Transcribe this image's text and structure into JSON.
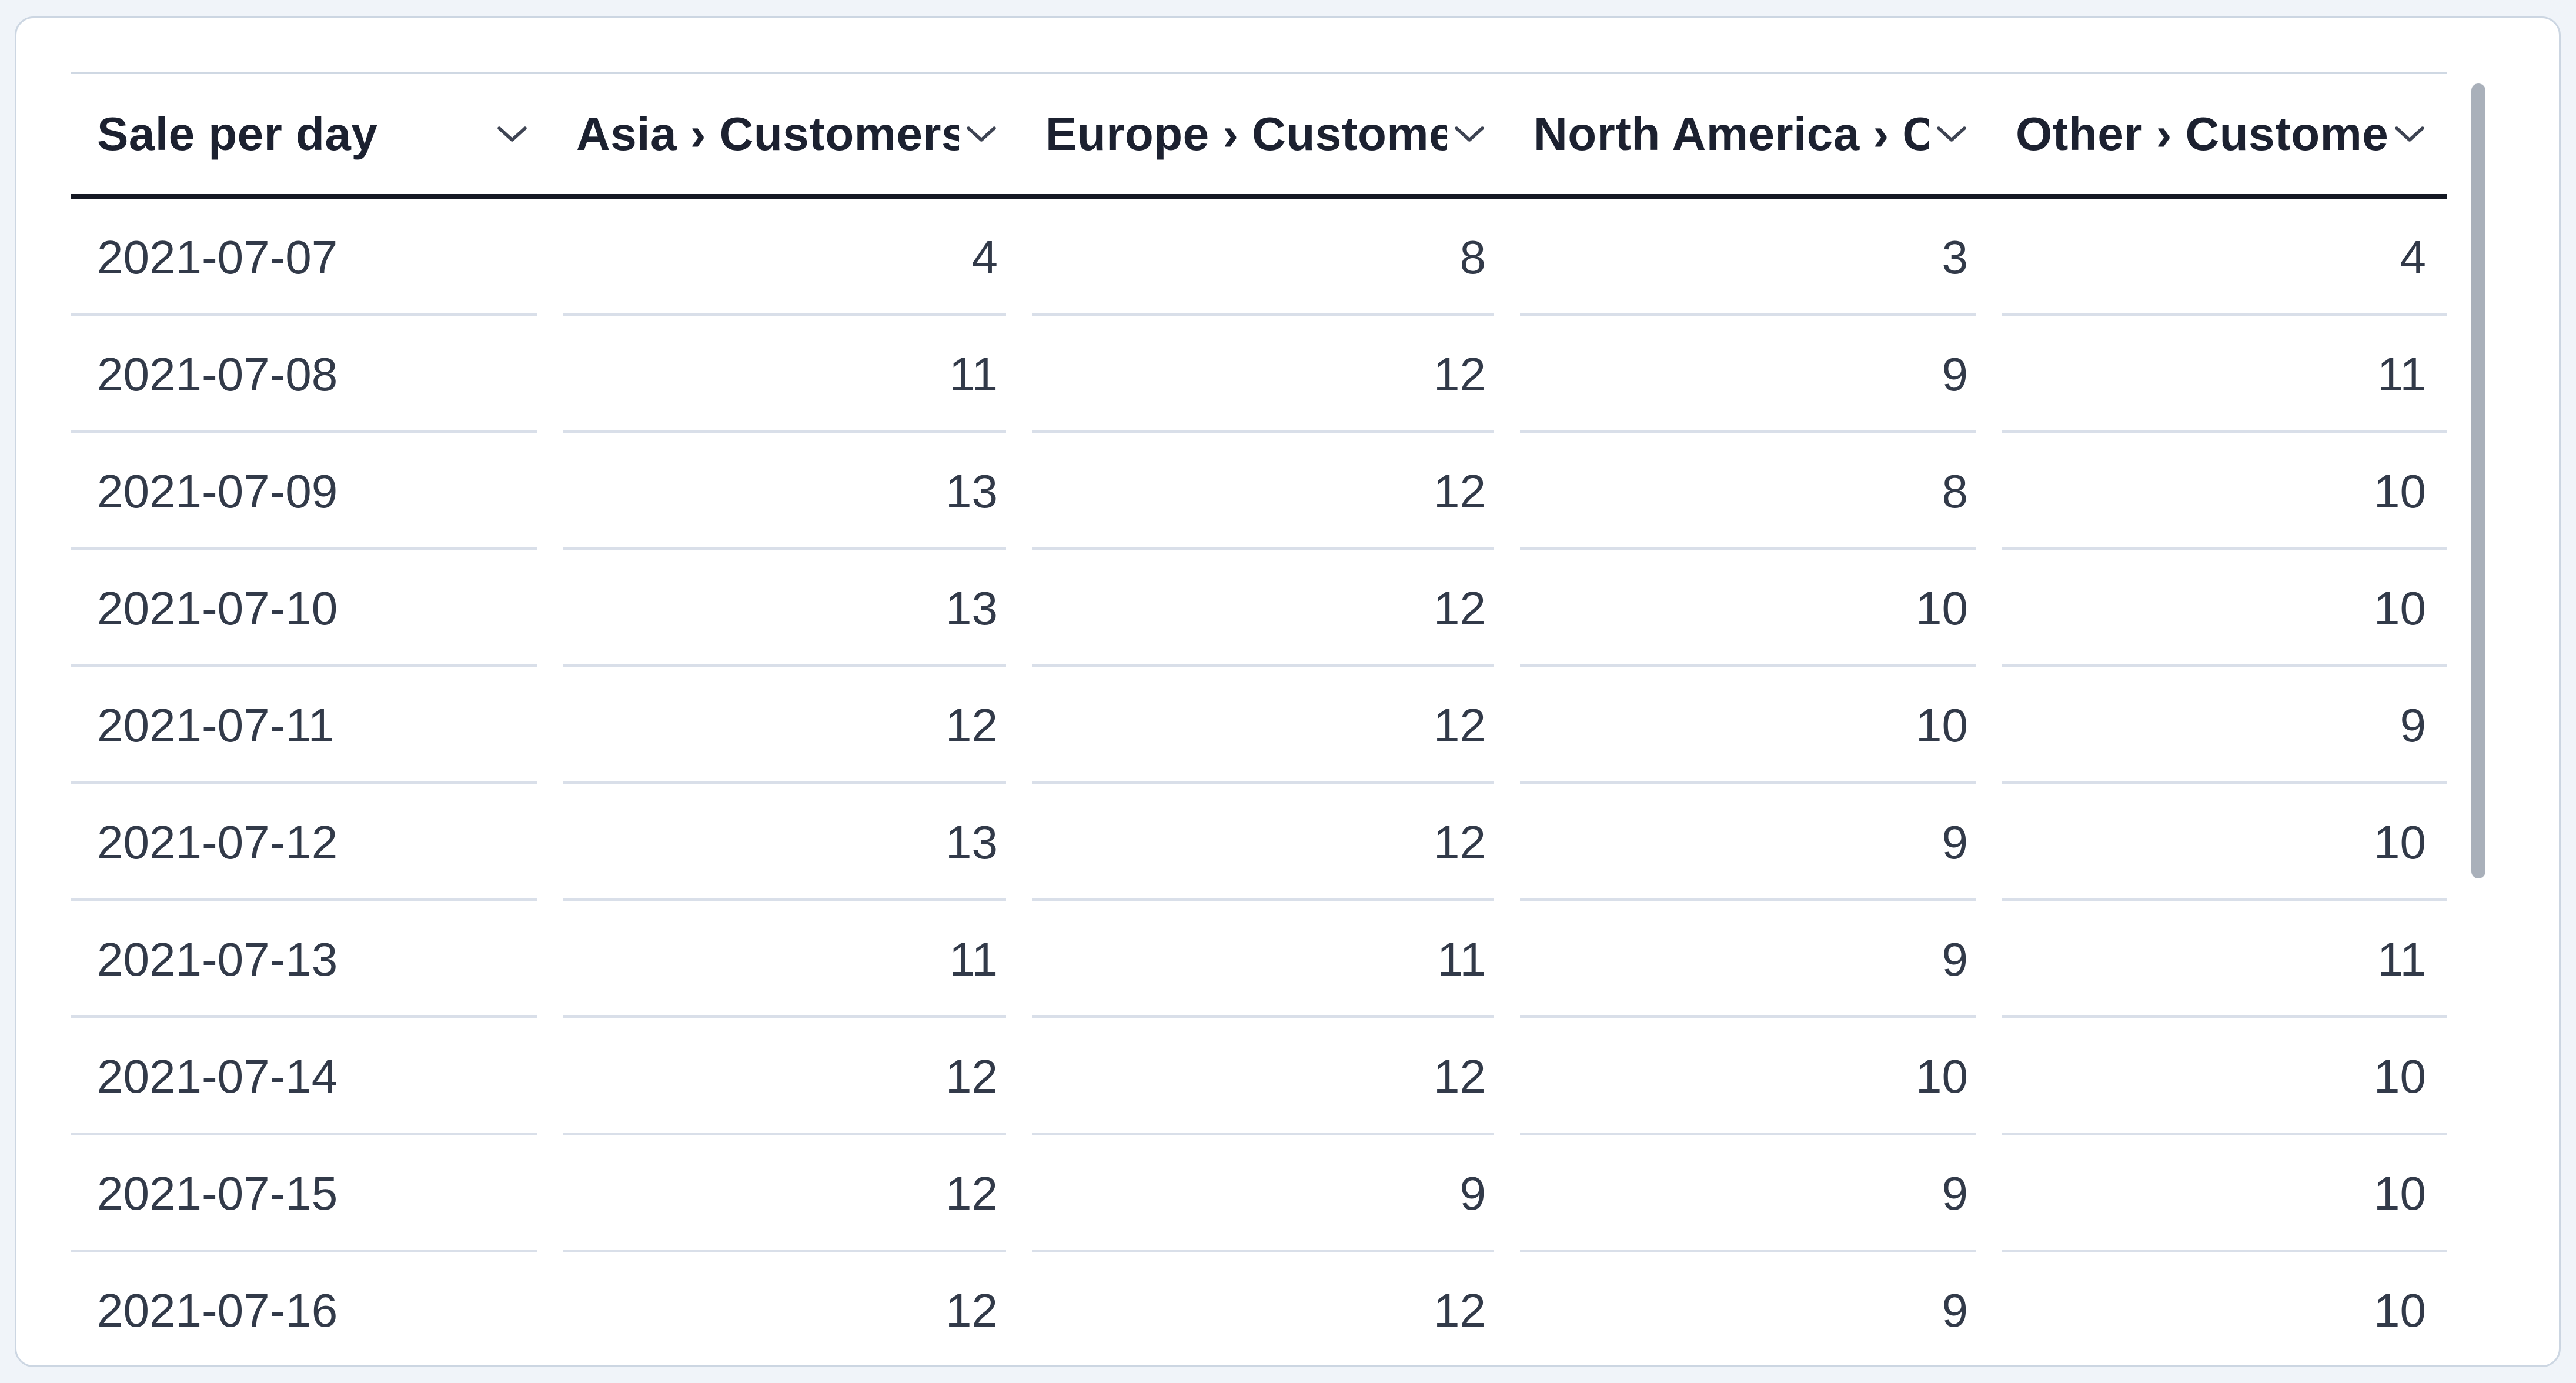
{
  "table": {
    "columns": [
      {
        "id": "sale-per-day",
        "label": "Sale per day",
        "align": "left"
      },
      {
        "id": "asia",
        "label": "Asia › Customers",
        "align": "right"
      },
      {
        "id": "europe",
        "label": "Europe › Customers",
        "align": "right"
      },
      {
        "id": "north-america",
        "label": "North America › Customers",
        "align": "right"
      },
      {
        "id": "other",
        "label": "Other › Customers",
        "align": "right"
      }
    ],
    "rows": [
      [
        "2021-07-07",
        4,
        8,
        3,
        4
      ],
      [
        "2021-07-08",
        11,
        12,
        9,
        11
      ],
      [
        "2021-07-09",
        13,
        12,
        8,
        10
      ],
      [
        "2021-07-10",
        13,
        12,
        10,
        10
      ],
      [
        "2021-07-11",
        12,
        12,
        10,
        9
      ],
      [
        "2021-07-12",
        13,
        12,
        9,
        10
      ],
      [
        "2021-07-13",
        11,
        11,
        9,
        11
      ],
      [
        "2021-07-14",
        12,
        12,
        10,
        10
      ],
      [
        "2021-07-15",
        12,
        9,
        9,
        10
      ],
      [
        "2021-07-16",
        12,
        12,
        9,
        10
      ]
    ]
  },
  "chart_data": {
    "type": "table",
    "title": "Sale per day",
    "categories": [
      "2021-07-07",
      "2021-07-08",
      "2021-07-09",
      "2021-07-10",
      "2021-07-11",
      "2021-07-12",
      "2021-07-13",
      "2021-07-14",
      "2021-07-15",
      "2021-07-16"
    ],
    "series": [
      {
        "name": "Asia › Customers",
        "values": [
          4,
          11,
          13,
          13,
          12,
          13,
          11,
          12,
          12,
          12
        ]
      },
      {
        "name": "Europe › Customers",
        "values": [
          8,
          12,
          12,
          12,
          12,
          12,
          11,
          12,
          9,
          12
        ]
      },
      {
        "name": "North America › Customers",
        "values": [
          3,
          9,
          8,
          10,
          10,
          9,
          9,
          10,
          9,
          9
        ]
      },
      {
        "name": "Other › Customers",
        "values": [
          4,
          11,
          10,
          10,
          9,
          10,
          11,
          10,
          10,
          10
        ]
      }
    ]
  },
  "icons": {
    "column_menu": "chevron-down"
  },
  "colors": {
    "page_background": "#f0f4f9",
    "card_background": "#ffffff",
    "card_border": "#ccd6e2",
    "header_text": "#1c2130",
    "header_underline": "#141823",
    "cell_text": "#323a49",
    "row_separator": "#d9dfe9",
    "scrollbar_thumb": "#a9b0ba",
    "chevron": "#3e4453"
  }
}
